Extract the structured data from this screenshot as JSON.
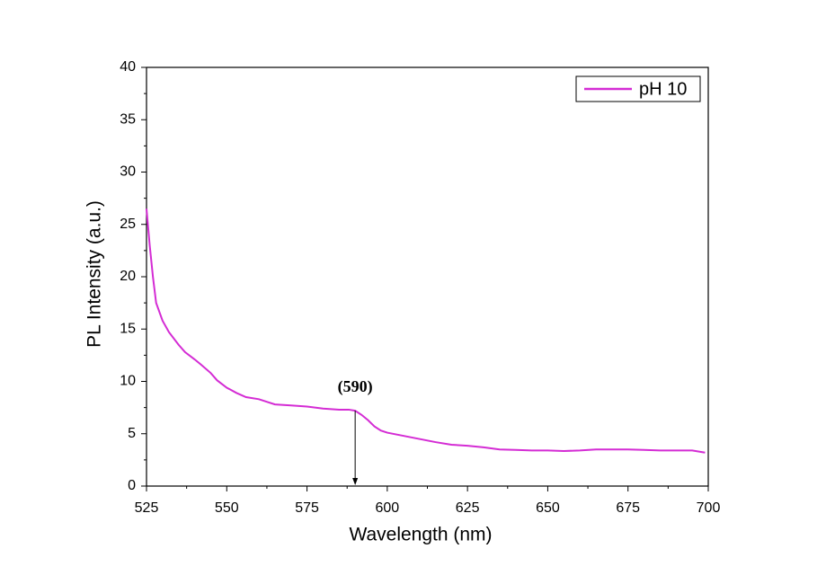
{
  "chart_data": {
    "type": "line",
    "x_label": "Wavelength (nm)",
    "y_label": "PL Intensity (a.u.)",
    "x": [
      525,
      526,
      527,
      528,
      530,
      532,
      535,
      537,
      540,
      542,
      545,
      547,
      550,
      553,
      556,
      560,
      563,
      565,
      570,
      575,
      580,
      585,
      588,
      590,
      592,
      594,
      596,
      598,
      600,
      605,
      610,
      615,
      620,
      625,
      630,
      635,
      640,
      645,
      650,
      655,
      660,
      665,
      670,
      675,
      680,
      685,
      690,
      695,
      699
    ],
    "series": [
      {
        "name": "pH 10",
        "color": "#d42cd4",
        "values": [
          26.5,
          23,
          20,
          17.5,
          15.8,
          14.7,
          13.5,
          12.8,
          12.1,
          11.6,
          10.8,
          10.1,
          9.4,
          8.9,
          8.5,
          8.3,
          8.0,
          7.8,
          7.7,
          7.6,
          7.4,
          7.3,
          7.3,
          7.2,
          6.8,
          6.3,
          5.7,
          5.3,
          5.1,
          4.8,
          4.5,
          4.2,
          3.95,
          3.85,
          3.7,
          3.5,
          3.45,
          3.4,
          3.4,
          3.35,
          3.4,
          3.5,
          3.5,
          3.5,
          3.45,
          3.4,
          3.4,
          3.4,
          3.2
        ]
      }
    ],
    "xlim": [
      525,
      700
    ],
    "xticks": [
      525,
      550,
      575,
      600,
      625,
      650,
      675,
      700
    ],
    "ylim": [
      0,
      40
    ],
    "yticks": [
      0,
      5,
      10,
      15,
      20,
      25,
      30,
      35,
      40
    ],
    "grid": false,
    "legend": "upper right",
    "annotations": [
      {
        "text": "(590)",
        "x": 590
      }
    ]
  }
}
